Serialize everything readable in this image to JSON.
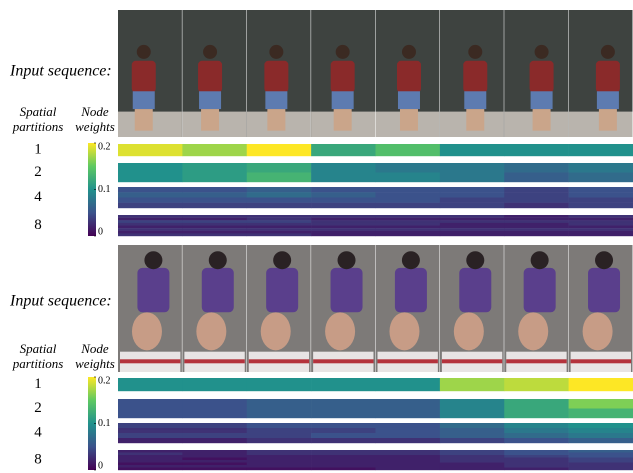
{
  "panels": [
    {
      "sequence_label": "Input sequence:",
      "partitions_header": [
        "Spatial",
        "partitions"
      ],
      "weights_header": [
        "Node",
        "weights"
      ],
      "colorbar_ticks": [
        0,
        0.1,
        0.2
      ],
      "partitions": [
        {
          "label": "1",
          "weights": [
            [
              0.19,
              0.17,
              0.2,
              0.12,
              0.14,
              0.1,
              0.1,
              0.1
            ]
          ]
        },
        {
          "label": "2",
          "weights": [
            [
              0.1,
              0.11,
              0.12,
              0.09,
              0.08,
              0.08,
              0.07,
              0.08
            ],
            [
              0.1,
              0.11,
              0.13,
              0.09,
              0.09,
              0.08,
              0.06,
              0.07
            ]
          ]
        },
        {
          "label": "4",
          "weights": [
            [
              0.05,
              0.05,
              0.06,
              0.05,
              0.05,
              0.05,
              0.04,
              0.05
            ],
            [
              0.06,
              0.06,
              0.07,
              0.06,
              0.05,
              0.05,
              0.04,
              0.05
            ],
            [
              0.05,
              0.05,
              0.05,
              0.05,
              0.05,
              0.04,
              0.04,
              0.04
            ],
            [
              0.04,
              0.04,
              0.04,
              0.04,
              0.04,
              0.04,
              0.03,
              0.04
            ]
          ]
        },
        {
          "label": "8",
          "weights": [
            [
              0.03,
              0.03,
              0.03,
              0.03,
              0.03,
              0.03,
              0.02,
              0.03
            ],
            [
              0.02,
              0.02,
              0.03,
              0.02,
              0.02,
              0.02,
              0.02,
              0.02
            ],
            [
              0.04,
              0.04,
              0.04,
              0.03,
              0.03,
              0.03,
              0.03,
              0.03
            ],
            [
              0.03,
              0.03,
              0.03,
              0.03,
              0.03,
              0.02,
              0.02,
              0.03
            ],
            [
              0.02,
              0.02,
              0.02,
              0.02,
              0.02,
              0.02,
              0.02,
              0.02
            ],
            [
              0.03,
              0.03,
              0.03,
              0.03,
              0.03,
              0.03,
              0.03,
              0.03
            ],
            [
              0.02,
              0.02,
              0.02,
              0.02,
              0.02,
              0.02,
              0.02,
              0.02
            ],
            [
              0.03,
              0.03,
              0.03,
              0.02,
              0.02,
              0.02,
              0.02,
              0.02
            ]
          ]
        }
      ]
    },
    {
      "sequence_label": "Input sequence:",
      "partitions_header": [
        "Spatial",
        "partitions"
      ],
      "weights_header": [
        "Node",
        "weights"
      ],
      "colorbar_ticks": [
        0,
        0.1,
        0.2
      ],
      "partitions": [
        {
          "label": "1",
          "weights": [
            [
              0.1,
              0.1,
              0.1,
              0.1,
              0.1,
              0.17,
              0.18,
              0.2
            ]
          ]
        },
        {
          "label": "2",
          "weights": [
            [
              0.05,
              0.05,
              0.06,
              0.06,
              0.06,
              0.09,
              0.12,
              0.16
            ],
            [
              0.05,
              0.05,
              0.06,
              0.06,
              0.06,
              0.09,
              0.12,
              0.13
            ]
          ]
        },
        {
          "label": "4",
          "weights": [
            [
              0.04,
              0.04,
              0.05,
              0.05,
              0.05,
              0.07,
              0.09,
              0.1
            ],
            [
              0.03,
              0.03,
              0.04,
              0.04,
              0.05,
              0.06,
              0.08,
              0.09
            ],
            [
              0.04,
              0.04,
              0.04,
              0.05,
              0.05,
              0.06,
              0.07,
              0.08
            ],
            [
              0.02,
              0.02,
              0.03,
              0.03,
              0.03,
              0.04,
              0.05,
              0.06
            ]
          ]
        },
        {
          "label": "8",
          "weights": [
            [
              0.02,
              0.02,
              0.03,
              0.03,
              0.03,
              0.04,
              0.05,
              0.06
            ],
            [
              0.03,
              0.02,
              0.03,
              0.03,
              0.03,
              0.04,
              0.05,
              0.05
            ],
            [
              0.02,
              0.02,
              0.02,
              0.02,
              0.02,
              0.03,
              0.04,
              0.05
            ],
            [
              0.02,
              0.01,
              0.02,
              0.02,
              0.02,
              0.03,
              0.03,
              0.04
            ],
            [
              0.02,
              0.02,
              0.02,
              0.02,
              0.02,
              0.03,
              0.03,
              0.04
            ],
            [
              0.01,
              0.01,
              0.02,
              0.02,
              0.02,
              0.02,
              0.03,
              0.03
            ],
            [
              0.02,
              0.02,
              0.02,
              0.02,
              0.02,
              0.02,
              0.03,
              0.03
            ],
            [
              0.01,
              0.01,
              0.01,
              0.01,
              0.02,
              0.02,
              0.02,
              0.03
            ]
          ]
        }
      ]
    }
  ]
}
